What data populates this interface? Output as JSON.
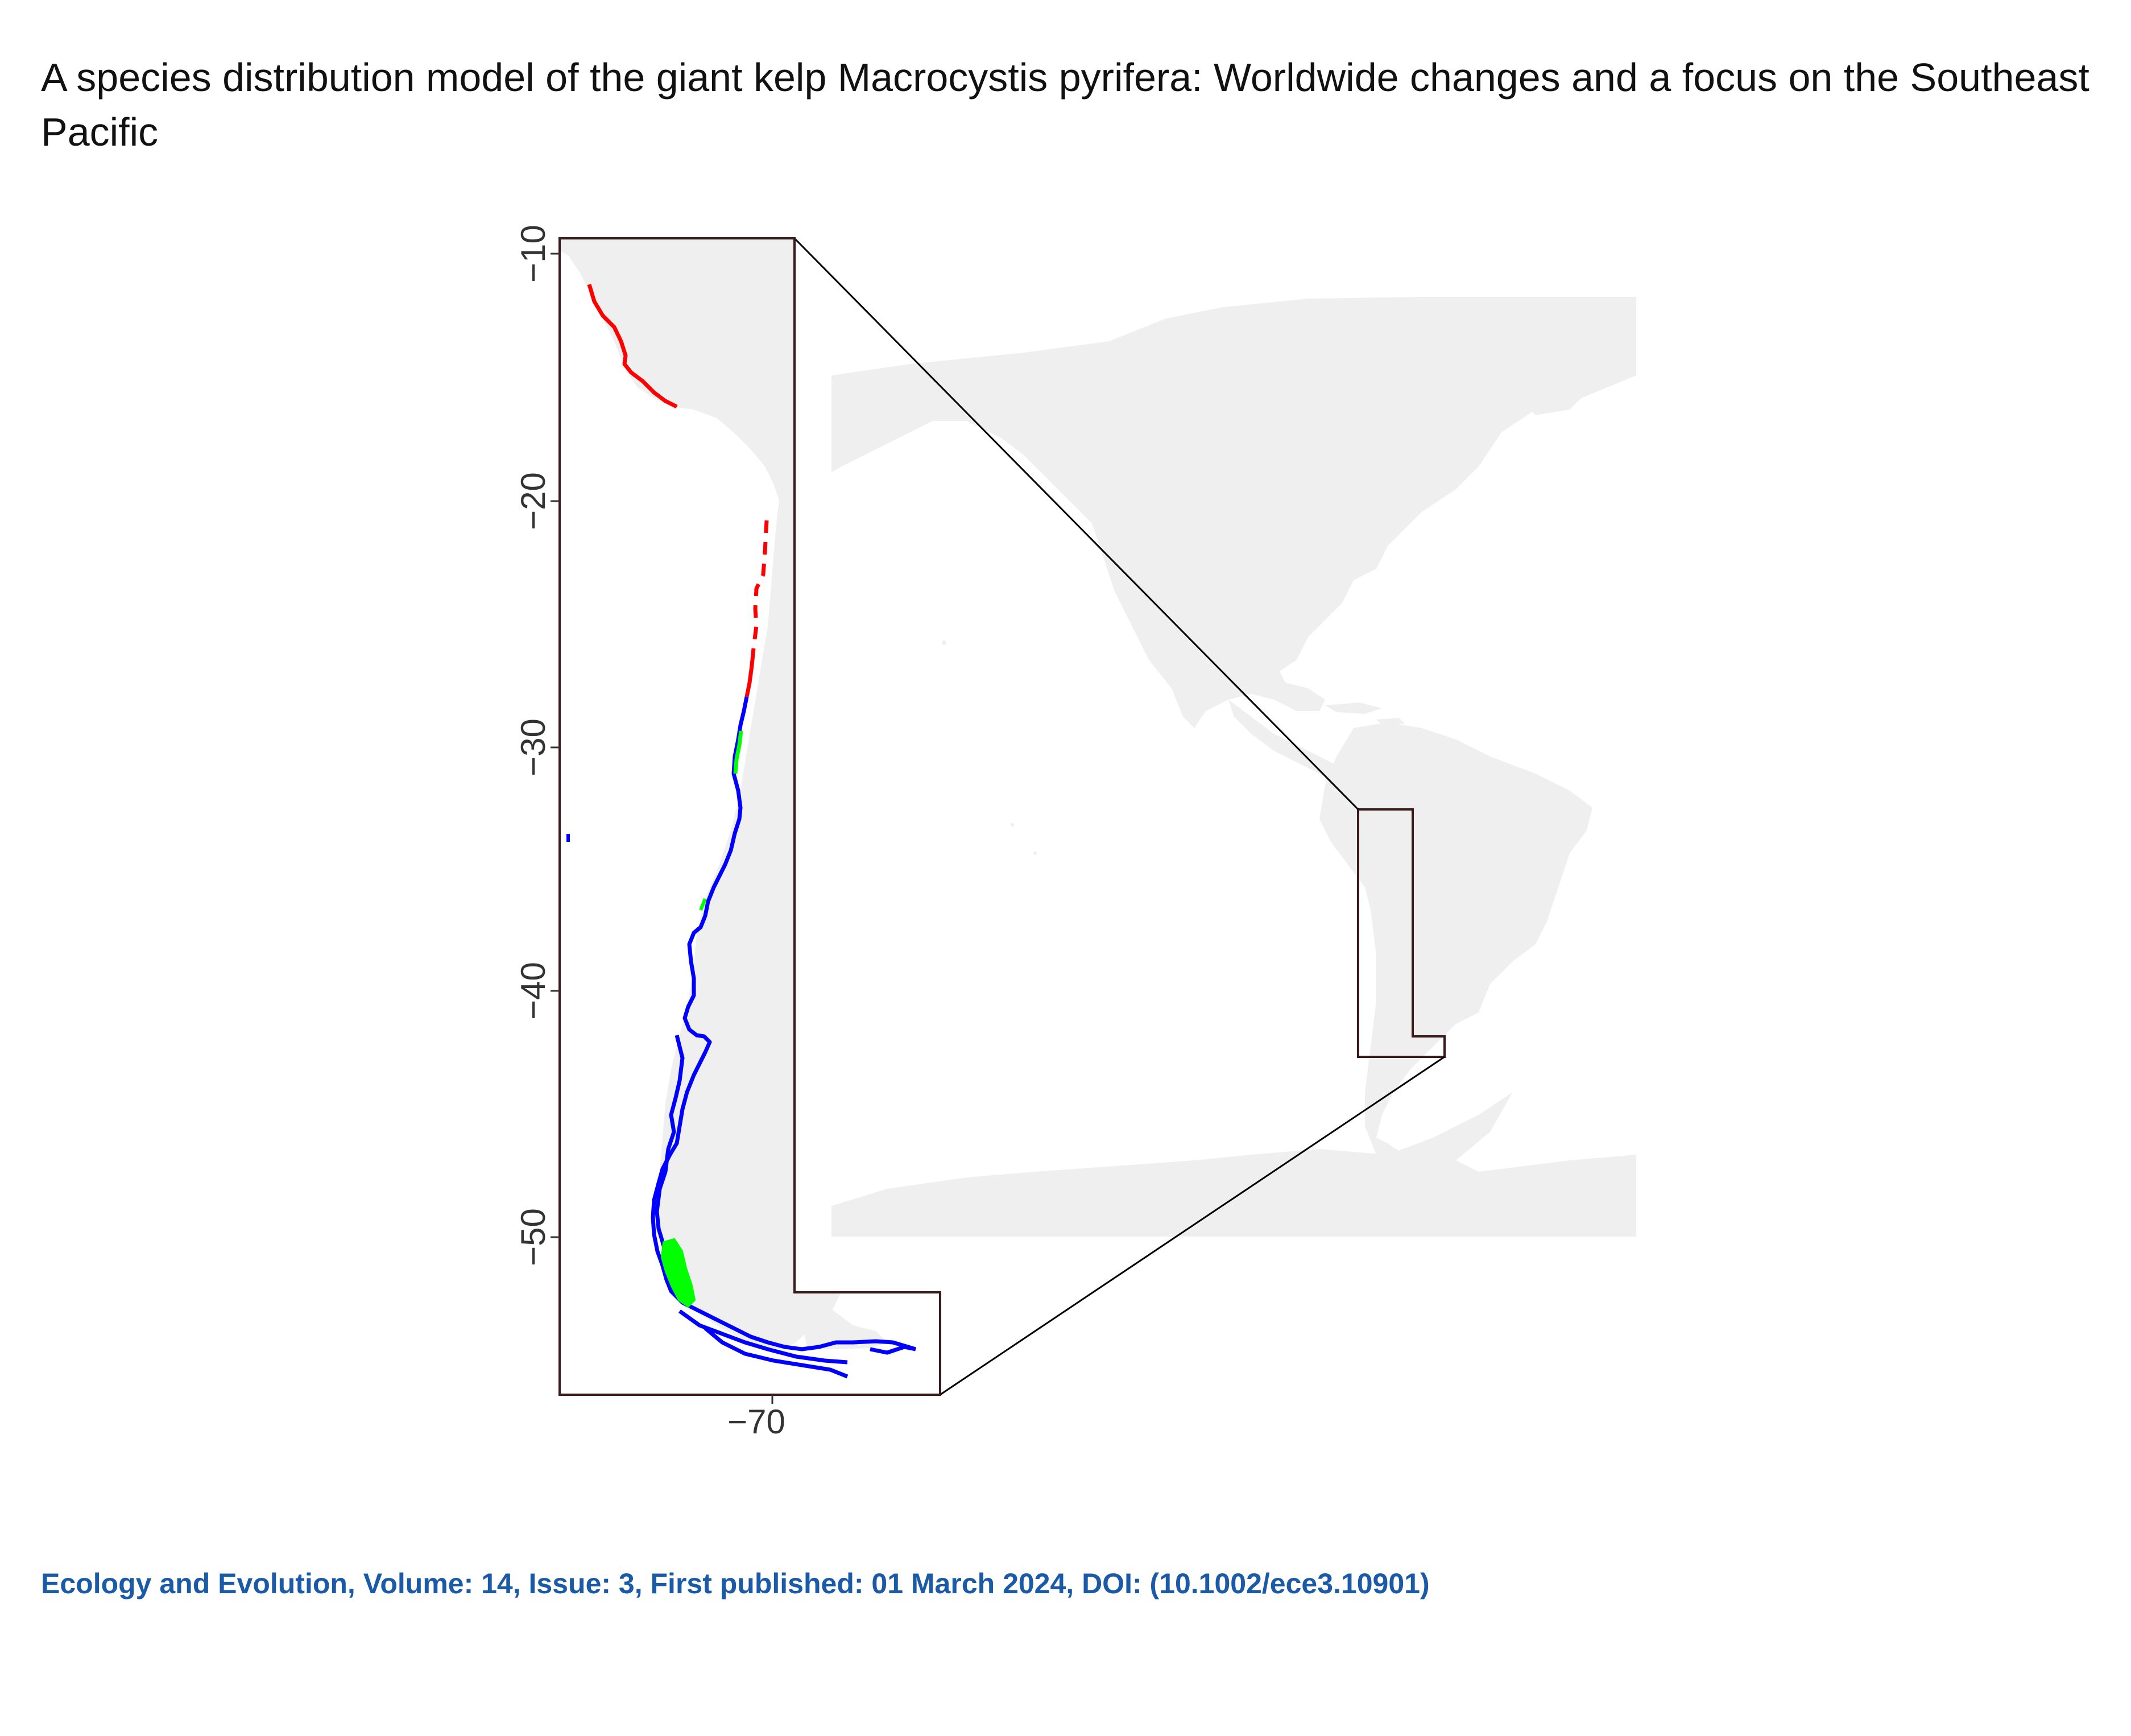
{
  "title": "A species distribution model of the giant kelp Macrocystis pyrifera: Worldwide changes and a focus on the Southeast Pacific",
  "citation": "Ecology and Evolution, Volume: 14, Issue: 3, First published: 01 March 2024, DOI: (10.1002/ece3.10901)",
  "map": {
    "y_axis_ticks": [
      "−10",
      "−20",
      "−30",
      "−40",
      "−50"
    ],
    "x_axis_ticks": [
      "−70"
    ],
    "colors": {
      "land": "#efefef",
      "frame": "#3a1a1a",
      "red_segments": "#ff0000",
      "blue_segments": "#0000ff",
      "green_segments": "#00ff00",
      "connector": "#000000"
    }
  }
}
